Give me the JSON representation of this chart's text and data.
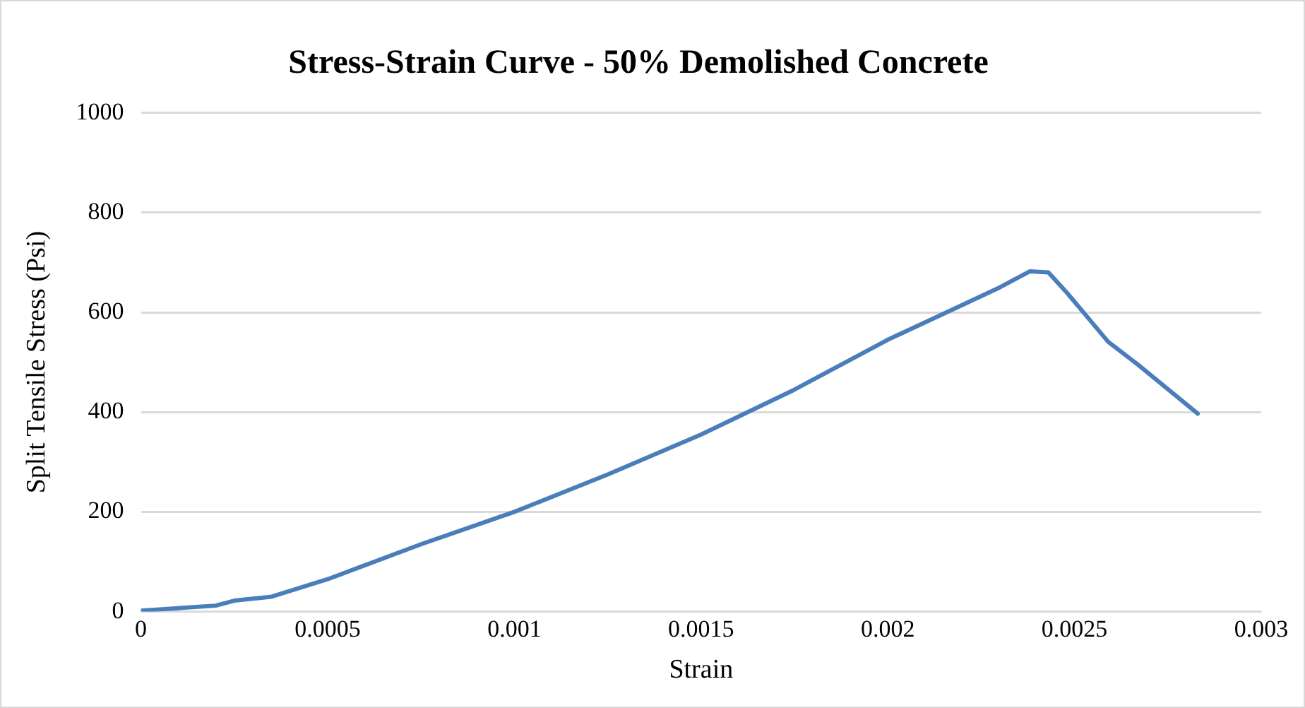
{
  "chart_data": {
    "type": "line",
    "title": "Stress-Strain Curve - 50% Demolished Concrete",
    "xlabel": "Strain",
    "ylabel": "Split Tensile Stress (Psi)",
    "series": [
      {
        "color": "#4a7ebb",
        "x": [
          0,
          0.0001,
          0.0002,
          0.00025,
          0.00035,
          0.0005,
          0.00075,
          0.001,
          0.00125,
          0.0015,
          0.00175,
          0.002,
          0.0022,
          0.0023,
          0.00238,
          0.00243,
          0.00248,
          0.00259,
          0.00267,
          0.00283
        ],
        "values": [
          2,
          7,
          12,
          22,
          30,
          65,
          135,
          200,
          275,
          355,
          445,
          545,
          615,
          650,
          682,
          680,
          639,
          541,
          495,
          397
        ]
      }
    ],
    "xlim": [
      0,
      0.003
    ],
    "xticks": [
      0,
      0.0005,
      0.001,
      0.0015,
      0.002,
      0.0025,
      0.003
    ],
    "ylim": [
      0,
      1000
    ],
    "yticks": [
      0,
      200,
      400,
      600,
      800,
      1000
    ],
    "grid": "y",
    "marker": "none",
    "line_style": "solid"
  }
}
